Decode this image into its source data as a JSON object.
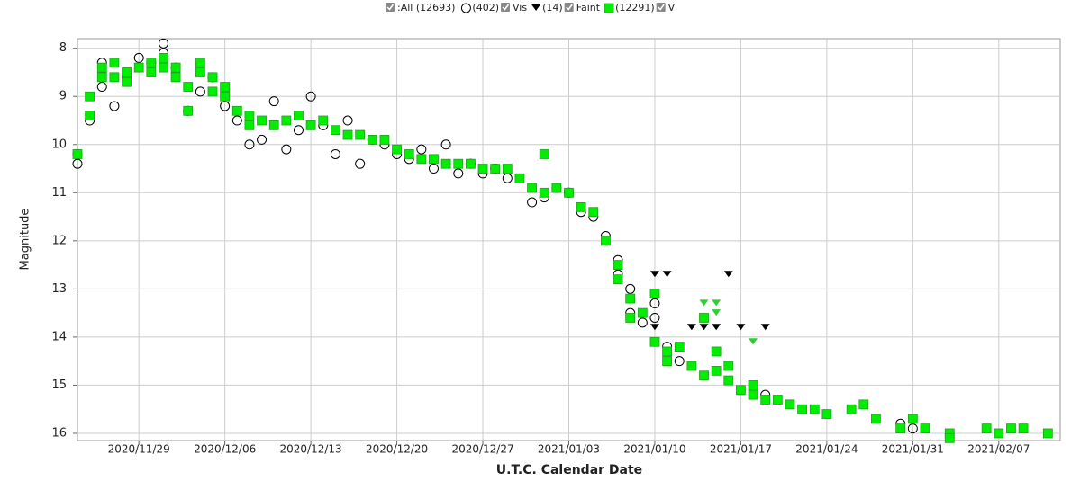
{
  "chart_data": {
    "type": "scatter",
    "all_label": ":All (12693)",
    "xlabel": "U.T.C. Calendar Date",
    "ylabel": "Magnitude",
    "xlim": [
      "2020/11/24",
      "2021/02/12"
    ],
    "xticks": [
      "2020/11/29",
      "2020/12/06",
      "2020/12/13",
      "2020/12/20",
      "2020/12/27",
      "2021/01/03",
      "2021/01/10",
      "2021/01/17",
      "2021/01/24",
      "2021/01/31",
      "2021/02/07"
    ],
    "ylim": [
      16.15,
      7.8
    ],
    "yticks": [
      8,
      9,
      10,
      11,
      12,
      13,
      14,
      15,
      16
    ],
    "grid": true,
    "series": [
      {
        "name": "Vis",
        "count_label": "(402)",
        "marker": "circle",
        "color": "#000000",
        "x": [
          "2020/11/24",
          "2020/11/24",
          "2020/11/25",
          "2020/11/26",
          "2020/11/26",
          "2020/11/27",
          "2020/11/28",
          "2020/11/29",
          "2020/11/30",
          "2020/12/01",
          "2020/12/01",
          "2020/12/02",
          "2020/12/03",
          "2020/12/04",
          "2020/12/05",
          "2020/12/06",
          "2020/12/07",
          "2020/12/08",
          "2020/12/09",
          "2020/12/10",
          "2020/12/11",
          "2020/12/12",
          "2020/12/13",
          "2020/12/14",
          "2020/12/15",
          "2020/12/16",
          "2020/12/17",
          "2020/12/18",
          "2020/12/19",
          "2020/12/20",
          "2020/12/21",
          "2020/12/22",
          "2020/12/23",
          "2020/12/24",
          "2020/12/25",
          "2020/12/26",
          "2020/12/27",
          "2020/12/28",
          "2020/12/29",
          "2020/12/31",
          "2021/01/01",
          "2021/01/02",
          "2021/01/03",
          "2021/01/04",
          "2021/01/05",
          "2021/01/06",
          "2021/01/07",
          "2021/01/07",
          "2021/01/08",
          "2021/01/08",
          "2021/01/09",
          "2021/01/10",
          "2021/01/10",
          "2021/01/11",
          "2021/01/12",
          "2021/01/19",
          "2021/01/30",
          "2021/01/31"
        ],
        "values": [
          10.4,
          10.2,
          9.5,
          8.8,
          8.3,
          9.2,
          8.6,
          8.2,
          8.3,
          8.1,
          7.9,
          8.4,
          9.3,
          8.9,
          8.6,
          9.2,
          9.5,
          10.0,
          9.9,
          9.1,
          10.1,
          9.7,
          9.0,
          9.6,
          10.2,
          9.5,
          10.4,
          9.9,
          10.0,
          10.2,
          10.3,
          10.1,
          10.5,
          10.0,
          10.6,
          10.4,
          10.6,
          10.5,
          10.7,
          11.2,
          11.1,
          10.9,
          11.0,
          11.4,
          11.5,
          11.9,
          12.4,
          12.7,
          13.0,
          13.5,
          13.7,
          13.3,
          13.6,
          14.2,
          14.5,
          15.2,
          15.8,
          15.9
        ]
      },
      {
        "name": "Faint",
        "count_label": "(14)",
        "marker": "triangle",
        "color": "#000000",
        "point_colors": [
          "#000000",
          "#000000",
          "#000000",
          "#000000",
          "#000000",
          "#000000",
          "#000000",
          "#000000",
          "#000000",
          "#33cc33",
          "#33cc33",
          "#33cc33",
          "#33cc33",
          "#33cc33"
        ],
        "x": [
          "2021/01/10",
          "2021/01/11",
          "2021/01/10",
          "2021/01/13",
          "2021/01/14",
          "2021/01/15",
          "2021/01/16",
          "2021/01/17",
          "2021/01/19",
          "2021/01/14",
          "2021/01/15",
          "2021/01/14",
          "2021/01/18",
          "2021/01/15"
        ],
        "values": [
          12.7,
          12.7,
          13.8,
          13.8,
          13.8,
          13.8,
          12.7,
          13.8,
          13.8,
          13.3,
          13.3,
          13.6,
          14.1,
          13.5
        ]
      },
      {
        "name": "V",
        "count_label": "(12291)",
        "marker": "square",
        "color": "#00ee00",
        "x": [
          "2020/11/24",
          "2020/11/25",
          "2020/11/25",
          "2020/11/26",
          "2020/11/26",
          "2020/11/27",
          "2020/11/27",
          "2020/11/28",
          "2020/11/28",
          "2020/11/29",
          "2020/11/30",
          "2020/11/30",
          "2020/12/01",
          "2020/12/01",
          "2020/12/02",
          "2020/12/02",
          "2020/12/03",
          "2020/12/03",
          "2020/12/04",
          "2020/12/04",
          "2020/12/05",
          "2020/12/05",
          "2020/12/06",
          "2020/12/06",
          "2020/12/07",
          "2020/12/08",
          "2020/12/08",
          "2020/12/09",
          "2020/12/10",
          "2020/12/11",
          "2020/12/12",
          "2020/12/13",
          "2020/12/14",
          "2020/12/15",
          "2020/12/16",
          "2020/12/17",
          "2020/12/18",
          "2020/12/19",
          "2020/12/20",
          "2020/12/21",
          "2020/12/22",
          "2020/12/23",
          "2020/12/24",
          "2020/12/25",
          "2020/12/26",
          "2020/12/27",
          "2020/12/28",
          "2020/12/29",
          "2020/12/30",
          "2020/12/31",
          "2021/01/01",
          "2021/01/01",
          "2021/01/02",
          "2021/01/03",
          "2021/01/04",
          "2021/01/05",
          "2021/01/06",
          "2021/01/07",
          "2021/01/07",
          "2021/01/08",
          "2021/01/08",
          "2021/01/09",
          "2021/01/10",
          "2021/01/10",
          "2021/01/11",
          "2021/01/11",
          "2021/01/12",
          "2021/01/13",
          "2021/01/14",
          "2021/01/14",
          "2021/01/15",
          "2021/01/15",
          "2021/01/16",
          "2021/01/16",
          "2021/01/17",
          "2021/01/18",
          "2021/01/18",
          "2021/01/19",
          "2021/01/20",
          "2021/01/21",
          "2021/01/22",
          "2021/01/23",
          "2021/01/24",
          "2021/01/26",
          "2021/01/27",
          "2021/01/28",
          "2021/01/30",
          "2021/01/31",
          "2021/02/01",
          "2021/02/03",
          "2021/02/03",
          "2021/02/06",
          "2021/02/07",
          "2021/02/08",
          "2021/02/09",
          "2021/02/11"
        ],
        "values": [
          10.2,
          9.4,
          9.0,
          8.6,
          8.4,
          8.6,
          8.3,
          8.5,
          8.7,
          8.4,
          8.5,
          8.3,
          8.4,
          8.2,
          8.4,
          8.6,
          8.8,
          9.3,
          8.5,
          8.3,
          8.9,
          8.6,
          9.0,
          8.8,
          9.3,
          9.6,
          9.4,
          9.5,
          9.6,
          9.5,
          9.4,
          9.6,
          9.5,
          9.7,
          9.8,
          9.8,
          9.9,
          9.9,
          10.1,
          10.2,
          10.3,
          10.3,
          10.4,
          10.4,
          10.4,
          10.5,
          10.5,
          10.5,
          10.7,
          10.9,
          11.0,
          10.2,
          10.9,
          11.0,
          11.3,
          11.4,
          12.0,
          12.5,
          12.8,
          13.2,
          13.6,
          13.5,
          14.1,
          13.1,
          14.3,
          14.5,
          14.2,
          14.6,
          14.8,
          13.6,
          14.3,
          14.7,
          14.6,
          14.9,
          15.1,
          15.0,
          15.2,
          15.3,
          15.3,
          15.4,
          15.5,
          15.5,
          15.6,
          15.5,
          15.4,
          15.7,
          15.9,
          15.7,
          15.9,
          16.0,
          16.1,
          15.9,
          16.0,
          15.9,
          15.9,
          16.0
        ]
      }
    ]
  }
}
